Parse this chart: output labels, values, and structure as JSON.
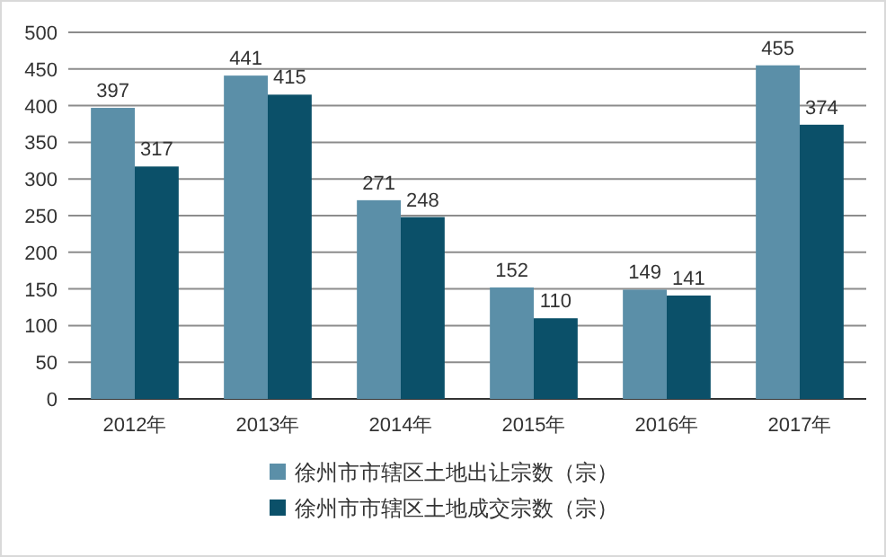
{
  "chart_data": {
    "type": "bar",
    "categories": [
      "2012年",
      "2013年",
      "2014年",
      "2015年",
      "2016年",
      "2017年"
    ],
    "series": [
      {
        "name": "徐州市市辖区土地出让宗数（宗）",
        "color": "#5b8fa8",
        "values": [
          397,
          441,
          271,
          152,
          149,
          455
        ]
      },
      {
        "name": "徐州市市辖区土地成交宗数（宗）",
        "color": "#0b5069",
        "values": [
          317,
          415,
          248,
          110,
          141,
          374
        ]
      }
    ],
    "ylim": [
      0,
      500
    ],
    "yticks": [
      0,
      50,
      100,
      150,
      200,
      250,
      300,
      350,
      400,
      450,
      500
    ],
    "grid": "y",
    "legend": "bottom",
    "data_labels": true
  }
}
